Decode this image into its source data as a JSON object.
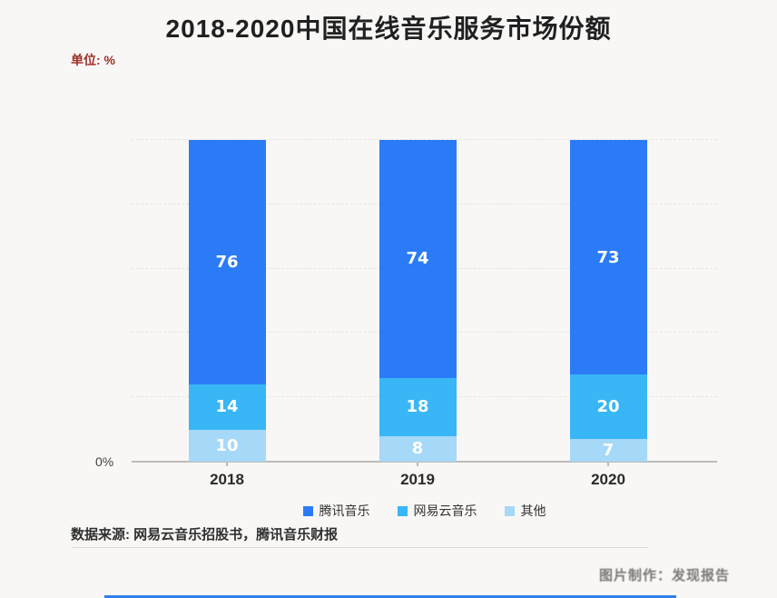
{
  "page": {
    "title": "2018-2020中国在线音乐服务市场份额",
    "unit_label": "单位: %",
    "source": "数据来源: 网易云音乐招股书，腾讯音乐财报",
    "watermark": "图片制作：发现报告"
  },
  "chart_data": {
    "type": "bar",
    "stacked": true,
    "title": "2018-2020中国在线音乐服务市场份额",
    "unit": "%",
    "categories": [
      "2018",
      "2019",
      "2020"
    ],
    "series": [
      {
        "name": "腾讯音乐",
        "color": "#2b7bf7",
        "values": [
          76,
          74,
          73
        ]
      },
      {
        "name": "网易云音乐",
        "color": "#38b6f6",
        "values": [
          14,
          18,
          20
        ]
      },
      {
        "name": "其他",
        "color": "#a6d8f8",
        "values": [
          10,
          8,
          7
        ]
      }
    ],
    "ylim": [
      0,
      100
    ],
    "y_axis_zero_label": "0%",
    "grid": "horizontal dashed every 20",
    "legend_position": "bottom"
  }
}
